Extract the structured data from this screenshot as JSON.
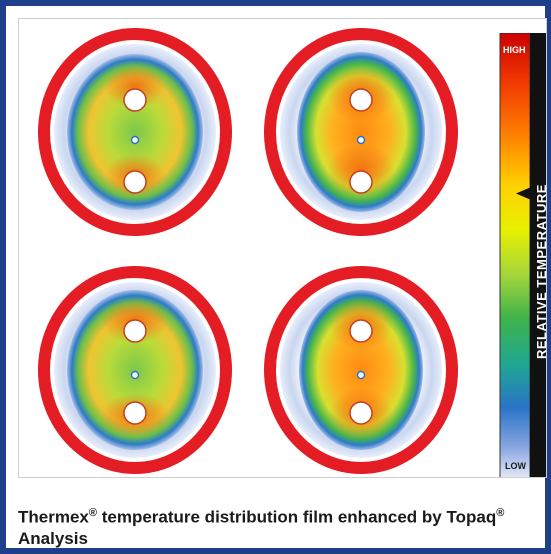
{
  "caption": {
    "main": "Thermex",
    "reg1": "®",
    "middle": " temperature distribution film enhanced by Topaq",
    "reg2": "®",
    "end": " Analysis"
  },
  "scale": {
    "high_label": "HIGH",
    "low_label": "LOW",
    "axis_label": "RELATIVE TEMPERATURE",
    "indicator_level": 0.36,
    "colors": [
      "#cc0000",
      "#ee3300",
      "#ff7a00",
      "#ffd000",
      "#e8f000",
      "#a6d63a",
      "#3fb34a",
      "#20a890",
      "#2a74c8",
      "#8aa6e0",
      "#e6ecf8"
    ]
  },
  "film": {
    "ring_color": "#e31d23",
    "discs": [
      {
        "id": "top-left",
        "pattern": "cool-center"
      },
      {
        "id": "top-right",
        "pattern": "hot-center"
      },
      {
        "id": "bottom-left",
        "pattern": "cool-center"
      },
      {
        "id": "bottom-right",
        "pattern": "hot-center"
      }
    ]
  }
}
